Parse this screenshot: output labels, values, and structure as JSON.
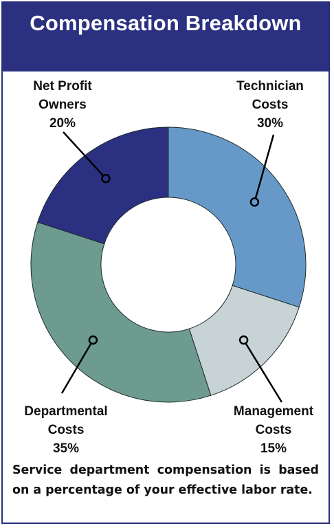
{
  "title": "Compensation Breakdown",
  "chart_data": {
    "type": "pie",
    "series": [
      {
        "name": "Technician Costs",
        "lines": [
          "Technician",
          "Costs"
        ],
        "value": 30,
        "label": "30%",
        "color": "#6699c8"
      },
      {
        "name": "Management Costs",
        "lines": [
          "Management",
          "Costs"
        ],
        "value": 15,
        "label": "15%",
        "color": "#c8d3d6"
      },
      {
        "name": "Departmental Costs",
        "lines": [
          "Departmental",
          "Costs"
        ],
        "value": 35,
        "label": "35%",
        "color": "#6d9b8f"
      },
      {
        "name": "Net Profit Owners",
        "lines": [
          "Net Profit",
          "Owners"
        ],
        "value": 20,
        "label": "20%",
        "color": "#2b3180"
      }
    ]
  },
  "caption": "Service department compensation is based on a percentage of your effective labor rate."
}
